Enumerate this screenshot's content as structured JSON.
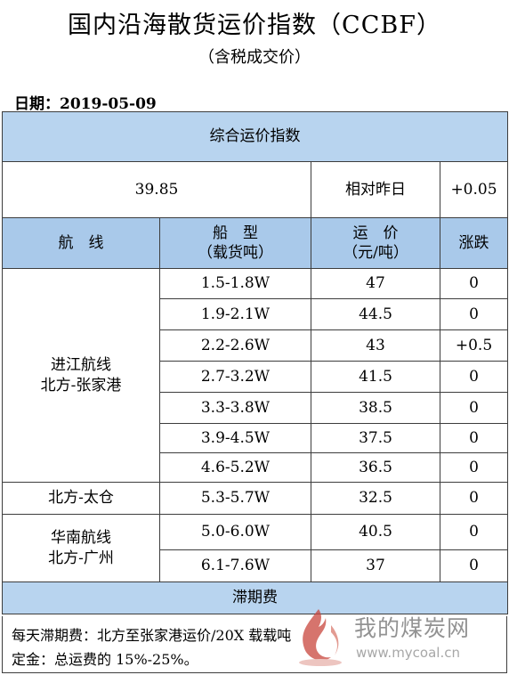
{
  "title": "国内沿海散货运价指数（CCBF）",
  "subtitle": "（含税成交价）",
  "date": "日期：2019-05-09",
  "index_section": {
    "header": "综合运价指数",
    "value": "39.85",
    "compare_label": "相对昨日",
    "compare_value": "+0.05"
  },
  "columns": {
    "route": "航　线",
    "ship_type": "船　型",
    "ship_type_unit": "（载货吨）",
    "freight": "运　价",
    "freight_unit": "（元/吨）",
    "change": "涨跌"
  },
  "groups": [
    {
      "route_line1": "进江航线",
      "route_line2": "北方-张家港",
      "rows": [
        {
          "ship_type": "1.5-1.8W",
          "freight": "47",
          "change": "0"
        },
        {
          "ship_type": "1.9-2.1W",
          "freight": "44.5",
          "change": "0"
        },
        {
          "ship_type": "2.2-2.6W",
          "freight": "43",
          "change": "+0.5"
        },
        {
          "ship_type": "2.7-3.2W",
          "freight": "41.5",
          "change": "0"
        },
        {
          "ship_type": "3.3-3.8W",
          "freight": "38.5",
          "change": "0"
        },
        {
          "ship_type": "3.9-4.5W",
          "freight": "37.5",
          "change": "0"
        },
        {
          "ship_type": "4.6-5.2W",
          "freight": "36.5",
          "change": "0"
        }
      ]
    },
    {
      "route_line1": "北方-太仓",
      "route_line2": "",
      "rows": [
        {
          "ship_type": "5.3-5.7W",
          "freight": "32.5",
          "change": "0"
        }
      ]
    },
    {
      "route_line1": "华南航线",
      "route_line2": "北方-广州",
      "rows": [
        {
          "ship_type": "5.0-6.0W",
          "freight": "40.5",
          "change": "0"
        },
        {
          "ship_type": "6.1-7.6W",
          "freight": "37",
          "change": "0"
        }
      ]
    }
  ],
  "demurrage": {
    "header": "滞期费",
    "line1": "每天滞期费：北方至张家港运价/20X 载载吨",
    "line2": "定金：总运费的 15%-25%。"
  },
  "watermark": {
    "text": "我的煤炭网",
    "url": "www.mycoal.cn"
  }
}
